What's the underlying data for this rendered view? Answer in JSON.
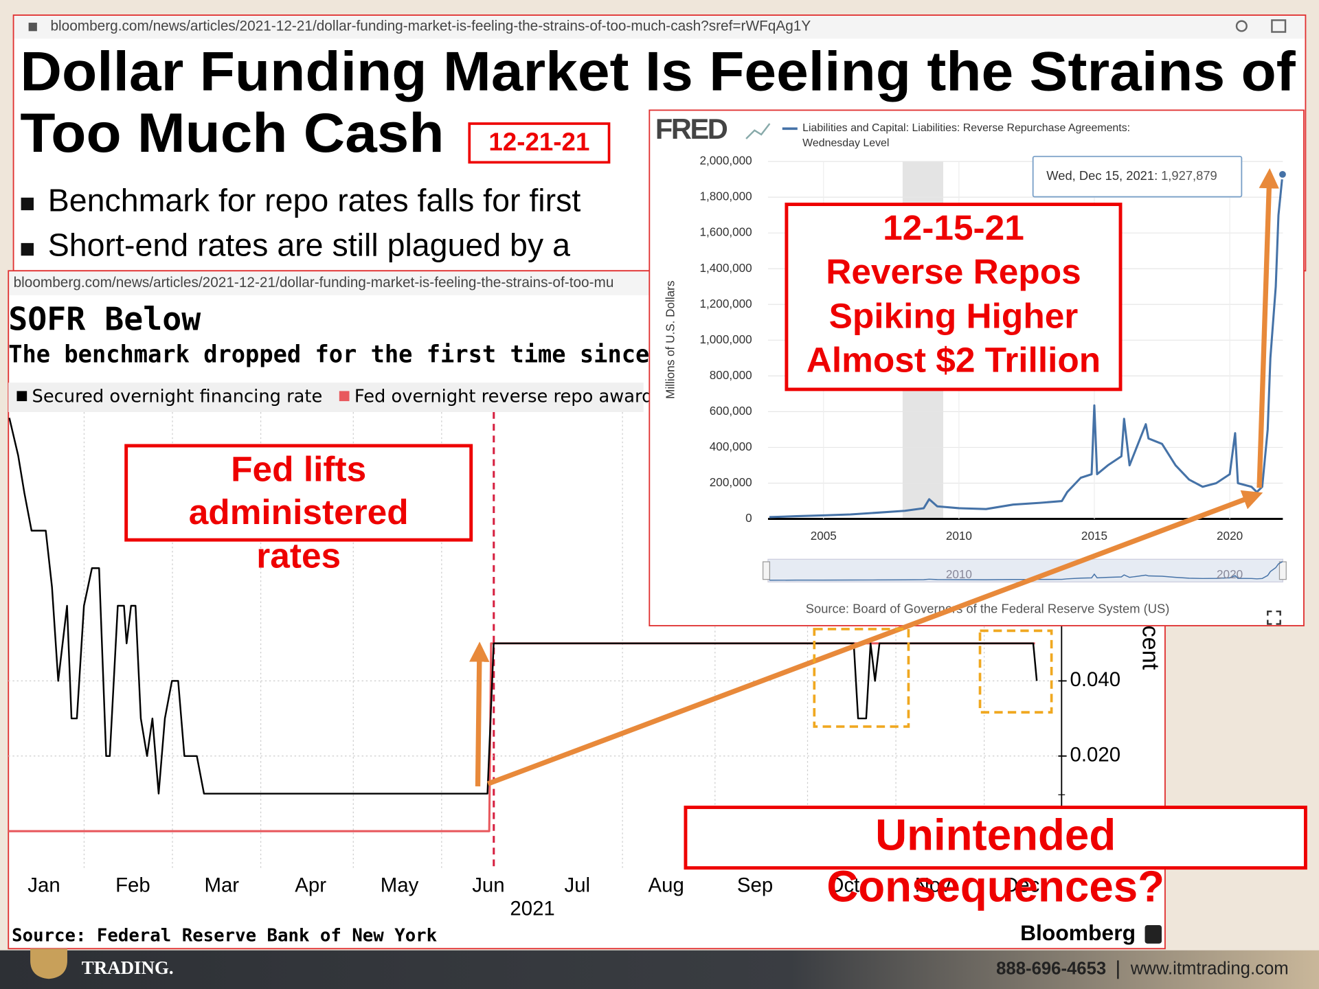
{
  "article": {
    "url": "bloomberg.com/news/articles/2021-12-21/dollar-funding-market-is-feeling-the-strains-of-too-much-cash?sref=rWFqAg1Y",
    "title_lines": [
      "Dollar Funding Market Is Feeling the Strains of",
      "Too Much Cash"
    ],
    "date_tag": "12-21-21",
    "bullets": [
      "Benchmark for repo rates falls for first",
      "Short-end rates are still plagued by a"
    ]
  },
  "chart_data": [
    {
      "type": "line",
      "url": "bloomberg.com/news/articles/2021-12-21/dollar-funding-market-is-feeling-the-strains-of-too-mu",
      "title": "SOFR Below",
      "subtitle": "The benchmark dropped for the first time since",
      "series": [
        {
          "name": "Secured overnight financing rate",
          "color": "#000000",
          "x": [
            0.11,
            0.21,
            0.28,
            0.36,
            0.52,
            0.59,
            0.66,
            0.76,
            0.81,
            0.87,
            0.95,
            1.04,
            1.12,
            1.2,
            1.24,
            1.33,
            1.4,
            1.43,
            1.48,
            1.53,
            1.59,
            1.66,
            1.72,
            1.79,
            1.86,
            1.94,
            2.01,
            2.08,
            2.22,
            2.3,
            5.49,
            5.56,
            9.61,
            9.66,
            9.75,
            9.8,
            9.85,
            9.9,
            11.63,
            11.67
          ],
          "values": [
            0.11,
            0.1,
            0.09,
            0.08,
            0.08,
            0.065,
            0.04,
            0.06,
            0.03,
            0.03,
            0.06,
            0.07,
            0.07,
            0.02,
            0.02,
            0.06,
            0.06,
            0.05,
            0.06,
            0.06,
            0.03,
            0.02,
            0.03,
            0.01,
            0.03,
            0.04,
            0.04,
            0.02,
            0.02,
            0.01,
            0.01,
            0.05,
            0.05,
            0.03,
            0.03,
            0.05,
            0.04,
            0.05,
            0.05,
            0.04
          ]
        },
        {
          "name": "Fed overnight reverse repo award rate",
          "color": "#e8595e",
          "x": [
            0.1,
            5.51,
            5.53,
            11.65
          ],
          "values": [
            0,
            0,
            0.05,
            0.05
          ]
        }
      ],
      "xlim": [
        0.1,
        11.93
      ],
      "xticks": [
        {
          "value": 0.5,
          "label": "Jan"
        },
        {
          "value": 1.5,
          "label": "Feb"
        },
        {
          "value": 2.5,
          "label": "Mar"
        },
        {
          "value": 3.5,
          "label": "Apr"
        },
        {
          "value": 4.5,
          "label": "May"
        },
        {
          "value": 5.5,
          "label": "Jun"
        },
        {
          "value": 6.5,
          "label": "Jul"
        },
        {
          "value": 7.5,
          "label": "Aug"
        },
        {
          "value": 8.5,
          "label": "Sep"
        },
        {
          "value": 9.5,
          "label": "Oct"
        },
        {
          "value": 10.5,
          "label": "Nov"
        },
        {
          "value": 11.5,
          "label": "Dec"
        }
      ],
      "x_label": "2021",
      "ylim": [
        -0.01,
        0.112
      ],
      "yticks": [
        {
          "value": 0.02,
          "label": "0.020"
        },
        {
          "value": 0.04,
          "label": "0.040"
        }
      ],
      "y_label": "cent",
      "grid": true,
      "source": "Source: Federal Reserve Bank of New York",
      "brand": "Bloomberg"
    },
    {
      "type": "line",
      "brand": "FRED",
      "series": [
        {
          "name": "Liabilities and Capital: Liabilities: Reverse Repurchase Agreements: Wednesday Level",
          "color": "#4572a7",
          "x": [
            2003.0,
            2004,
            2005,
            2006,
            2007,
            2008,
            2008.7,
            2008.9,
            2009.2,
            2010,
            2011,
            2012,
            2013,
            2013.8,
            2014.0,
            2014.5,
            2014.9,
            2015.0,
            2015.1,
            2015.5,
            2016,
            2016.1,
            2016.3,
            2016.9,
            2017,
            2017.5,
            2018,
            2018.5,
            2019,
            2019.5,
            2020,
            2020.2,
            2020.3,
            2020.8,
            2021.0,
            2021.2,
            2021.4,
            2021.5,
            2021.7,
            2021.8,
            2021.95
          ],
          "values": [
            10000,
            15000,
            20000,
            25000,
            35000,
            45000,
            60000,
            110000,
            70000,
            60000,
            55000,
            80000,
            90000,
            100000,
            150000,
            230000,
            250000,
            635000,
            250000,
            300000,
            350000,
            560000,
            300000,
            530000,
            450000,
            420000,
            300000,
            220000,
            180000,
            200000,
            250000,
            480000,
            200000,
            180000,
            150000,
            180000,
            500000,
            900000,
            1300000,
            1700000,
            1927879
          ]
        }
      ],
      "xlim": [
        2002.95,
        2021.96
      ],
      "xticks": [
        2005,
        2010,
        2015,
        2020
      ],
      "ylim": [
        0,
        2000000
      ],
      "yticks": [
        0,
        {
          "value": 200000,
          "label": "200,000"
        },
        {
          "value": 400000,
          "label": "400,000"
        },
        {
          "value": 600000,
          "label": "600,000"
        },
        {
          "value": 800000,
          "label": "800,000"
        },
        {
          "value": 1000000,
          "label": "1,000,000"
        },
        {
          "value": 1200000,
          "label": "1,200,000"
        },
        {
          "value": 1400000,
          "label": "1,400,000"
        },
        {
          "value": 1600000,
          "label": "1,600,000"
        },
        {
          "value": 1800000,
          "label": "1,800,000"
        },
        {
          "value": 2000000,
          "label": "2,000,000"
        }
      ],
      "y_label": "Millions of U.S. Dollars",
      "grid": true,
      "recessions": [
        [
          2007.92,
          2009.42
        ]
      ],
      "tooltip": {
        "date": "Wed, Dec 15, 2021:",
        "value": 1927879,
        "value_label": "1,927,879"
      },
      "navigator_labels": [
        2010,
        2020
      ],
      "source": "Source: Board of Governors of the Federal Reserve System (US)"
    }
  ],
  "annotations": {
    "fed_lifts": [
      "Fed lifts",
      "administered",
      "rates"
    ],
    "reverse_repos": [
      "12-15-21",
      "Reverse Repos",
      "Spiking Higher",
      "Almost $2 Trillion"
    ],
    "unintended": [
      "Unintended",
      "Consequences?"
    ]
  },
  "footer": {
    "logo": "TRADING.",
    "phone": "888-696-4653",
    "website": "www.itmtrading.com"
  }
}
